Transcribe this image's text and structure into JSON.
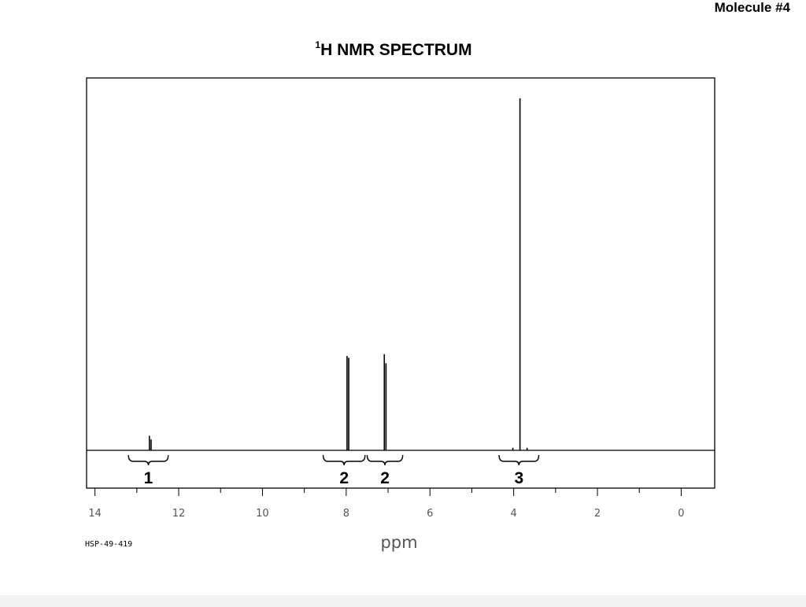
{
  "header": {
    "page_label": "Molecule #4",
    "title_superscript": "1",
    "title_main": "H NMR SPECTRUM"
  },
  "footer": {
    "code": "HSP-49-419"
  },
  "colors": {
    "ink": "#000000",
    "trace": "#000000",
    "frame": "#000000"
  },
  "chart_data": {
    "type": "line",
    "title": "¹H NMR SPECTRUM",
    "xlabel": "ppm",
    "ylabel": "",
    "x_reversed": true,
    "xlim": [
      14.2,
      -0.8
    ],
    "ylim": [
      0,
      100
    ],
    "x_ticks": [
      14,
      12,
      10,
      8,
      6,
      4,
      2,
      0
    ],
    "minor_ticks": [
      13,
      11,
      9,
      7,
      5,
      3,
      1
    ],
    "grid": false,
    "peaks": [
      {
        "ppm": 12.7,
        "height": 4.0
      },
      {
        "ppm": 12.66,
        "height": 3.0
      },
      {
        "ppm": 7.98,
        "height": 26.0
      },
      {
        "ppm": 7.94,
        "height": 25.5
      },
      {
        "ppm": 7.09,
        "height": 26.5
      },
      {
        "ppm": 7.05,
        "height": 24.0
      },
      {
        "ppm": 4.02,
        "height": 0.7
      },
      {
        "ppm": 3.85,
        "height": 97.0
      },
      {
        "ppm": 3.68,
        "height": 0.7
      }
    ],
    "integrations": [
      {
        "label": "1",
        "from": 13.2,
        "to": 12.25
      },
      {
        "label": "2",
        "from": 8.55,
        "to": 7.55
      },
      {
        "label": "2",
        "from": 7.5,
        "to": 6.65
      },
      {
        "label": "3",
        "from": 4.35,
        "to": 3.4
      }
    ]
  }
}
